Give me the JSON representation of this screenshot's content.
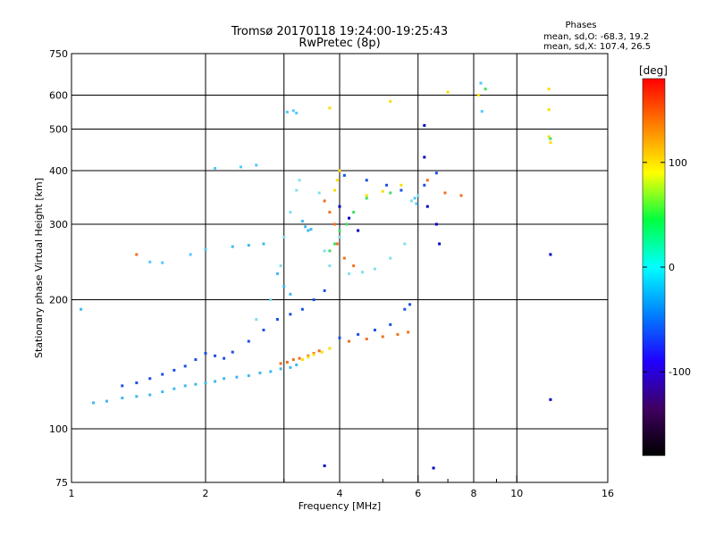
{
  "chart_data": {
    "type": "scatter",
    "title": "Tromsø 20170118 19:24:00-19:25:43",
    "subtitle": "RwPretec (8p)",
    "xlabel": "Frequency [MHz]",
    "ylabel": "Stationary phase Virtual Height [km]",
    "x_scale": "log",
    "y_scale": "log",
    "xlim": [
      1,
      16
    ],
    "ylim": [
      75,
      750
    ],
    "x_ticks": [
      1,
      2,
      4,
      6,
      8,
      10,
      16
    ],
    "x_tick_labels": [
      "1",
      "2",
      "4",
      "6",
      "8",
      "10",
      "16"
    ],
    "x_minor_ticks": [
      3,
      5,
      7,
      9
    ],
    "y_ticks": [
      75,
      100,
      200,
      300,
      400,
      500,
      600,
      750
    ],
    "y_tick_labels": [
      "75",
      "100",
      "200",
      "300",
      "400",
      "500",
      "600",
      "750"
    ],
    "x_grid": [
      2,
      3,
      4,
      6,
      8,
      10,
      16
    ],
    "y_grid": [
      100,
      200,
      300,
      400,
      500,
      600,
      750
    ],
    "grid": true,
    "phase_box": {
      "title": "Phases",
      "line_o": "mean, sd,O: -68.3, 19.2",
      "line_x": "mean, sd,X: 107.4, 26.5"
    },
    "colorbar": {
      "label": "[deg]",
      "min": -180,
      "max": 180,
      "ticks": [
        100,
        0,
        -100
      ],
      "tick_labels": [
        "100",
        "0",
        "-100"
      ],
      "colors": [
        "#000000",
        "#400060",
        "#2000ff",
        "#0080ff",
        "#00ffff",
        "#00ff40",
        "#ffff00",
        "#ff8000",
        "#ff0000"
      ]
    },
    "series": [
      {
        "color": "#3fb8f0",
        "points": [
          [
            1.12,
            115
          ],
          [
            1.2,
            116
          ],
          [
            1.3,
            118
          ],
          [
            1.4,
            119
          ],
          [
            1.5,
            120
          ],
          [
            1.6,
            122
          ],
          [
            1.7,
            124
          ],
          [
            1.8,
            126
          ],
          [
            1.9,
            127
          ],
          [
            2.0,
            128
          ],
          [
            2.1,
            129
          ],
          [
            2.2,
            131
          ],
          [
            2.35,
            132
          ],
          [
            2.5,
            133
          ],
          [
            2.65,
            135
          ],
          [
            2.8,
            136
          ],
          [
            2.95,
            138
          ],
          [
            3.1,
            139
          ],
          [
            3.2,
            141
          ],
          [
            2.3,
            266
          ],
          [
            2.5,
            268
          ],
          [
            2.7,
            270
          ],
          [
            2.9,
            230
          ],
          [
            3.0,
            215
          ],
          [
            3.1,
            206
          ],
          [
            3.3,
            305
          ],
          [
            3.35,
            296
          ],
          [
            3.4,
            290
          ],
          [
            3.45,
            292
          ],
          [
            1.05,
            190
          ]
        ]
      },
      {
        "color": "#1a50e6",
        "points": [
          [
            1.3,
            126
          ],
          [
            1.4,
            128
          ],
          [
            1.5,
            131
          ],
          [
            1.6,
            134
          ],
          [
            1.7,
            137
          ],
          [
            1.8,
            140
          ],
          [
            1.9,
            145
          ],
          [
            2.0,
            150
          ],
          [
            2.1,
            148
          ],
          [
            2.2,
            146
          ],
          [
            2.3,
            151
          ],
          [
            2.5,
            160
          ],
          [
            2.7,
            170
          ],
          [
            2.9,
            180
          ],
          [
            3.1,
            185
          ],
          [
            3.3,
            190
          ],
          [
            3.5,
            200
          ],
          [
            3.7,
            210
          ],
          [
            4.0,
            163
          ],
          [
            4.4,
            166
          ],
          [
            4.8,
            170
          ],
          [
            5.2,
            175
          ],
          [
            5.6,
            190
          ],
          [
            5.75,
            195
          ],
          [
            4.1,
            390
          ],
          [
            4.6,
            380
          ],
          [
            5.1,
            370
          ],
          [
            5.5,
            360
          ],
          [
            6.2,
            370
          ],
          [
            6.6,
            395
          ]
        ]
      },
      {
        "color": "#7fdff0",
        "points": [
          [
            2.6,
            180
          ],
          [
            2.8,
            200
          ],
          [
            2.95,
            240
          ],
          [
            3.0,
            280
          ],
          [
            3.1,
            320
          ],
          [
            3.2,
            360
          ],
          [
            3.25,
            380
          ],
          [
            3.6,
            355
          ],
          [
            3.7,
            260
          ],
          [
            3.8,
            240
          ],
          [
            4.2,
            230
          ],
          [
            4.5,
            232
          ],
          [
            4.8,
            236
          ],
          [
            5.2,
            250
          ],
          [
            5.6,
            270
          ],
          [
            5.8,
            340
          ],
          [
            6.0,
            350
          ],
          [
            4.0,
            280
          ]
        ]
      },
      {
        "color": "#f07020",
        "points": [
          [
            2.95,
            142
          ],
          [
            3.05,
            143
          ],
          [
            3.15,
            145
          ],
          [
            3.25,
            146
          ],
          [
            3.4,
            148
          ],
          [
            3.5,
            150
          ],
          [
            3.6,
            152
          ],
          [
            4.2,
            160
          ],
          [
            4.6,
            162
          ],
          [
            5.0,
            164
          ],
          [
            5.4,
            166
          ],
          [
            5.7,
            168
          ],
          [
            3.7,
            340
          ],
          [
            3.8,
            320
          ],
          [
            3.9,
            300
          ],
          [
            3.95,
            270
          ],
          [
            4.1,
            250
          ],
          [
            4.3,
            240
          ],
          [
            1.4,
            255
          ],
          [
            6.3,
            380
          ],
          [
            6.9,
            355
          ],
          [
            7.5,
            350
          ]
        ]
      },
      {
        "color": "#f8e000",
        "points": [
          [
            3.3,
            145
          ],
          [
            3.4,
            147
          ],
          [
            3.5,
            149
          ],
          [
            3.65,
            151
          ],
          [
            3.8,
            154
          ],
          [
            3.9,
            360
          ],
          [
            3.95,
            380
          ],
          [
            4.0,
            400
          ],
          [
            4.6,
            350
          ],
          [
            5.0,
            358
          ],
          [
            5.5,
            370
          ],
          [
            3.8,
            560
          ],
          [
            5.2,
            580
          ],
          [
            7.0,
            610
          ],
          [
            8.2,
            600
          ],
          [
            11.8,
            620
          ],
          [
            11.8,
            555
          ],
          [
            11.8,
            480
          ],
          [
            11.9,
            465
          ]
        ]
      },
      {
        "color": "#40e060",
        "points": [
          [
            3.8,
            260
          ],
          [
            3.9,
            270
          ],
          [
            4.0,
            290
          ],
          [
            4.15,
            300
          ],
          [
            4.3,
            320
          ],
          [
            4.6,
            345
          ],
          [
            5.2,
            355
          ],
          [
            8.5,
            620
          ],
          [
            11.9,
            475
          ]
        ]
      },
      {
        "color": "#0000c0",
        "points": [
          [
            4.0,
            330
          ],
          [
            4.2,
            310
          ],
          [
            4.4,
            290
          ],
          [
            6.2,
            510
          ],
          [
            6.2,
            430
          ],
          [
            6.5,
            81
          ],
          [
            6.3,
            330
          ],
          [
            6.6,
            300
          ],
          [
            6.7,
            270
          ],
          [
            11.9,
            117
          ],
          [
            11.9,
            255
          ],
          [
            3.7,
            82
          ]
        ]
      },
      {
        "color": "#50c8ff",
        "points": [
          [
            3.05,
            548
          ],
          [
            3.15,
            552
          ],
          [
            3.2,
            545
          ],
          [
            8.3,
            640
          ],
          [
            8.35,
            550
          ],
          [
            2.1,
            405
          ],
          [
            2.4,
            408
          ],
          [
            2.6,
            412
          ],
          [
            1.5,
            245
          ],
          [
            1.6,
            244
          ],
          [
            1.85,
            255
          ],
          [
            2.0,
            262
          ],
          [
            5.9,
            345
          ],
          [
            5.95,
            335
          ]
        ]
      }
    ]
  }
}
